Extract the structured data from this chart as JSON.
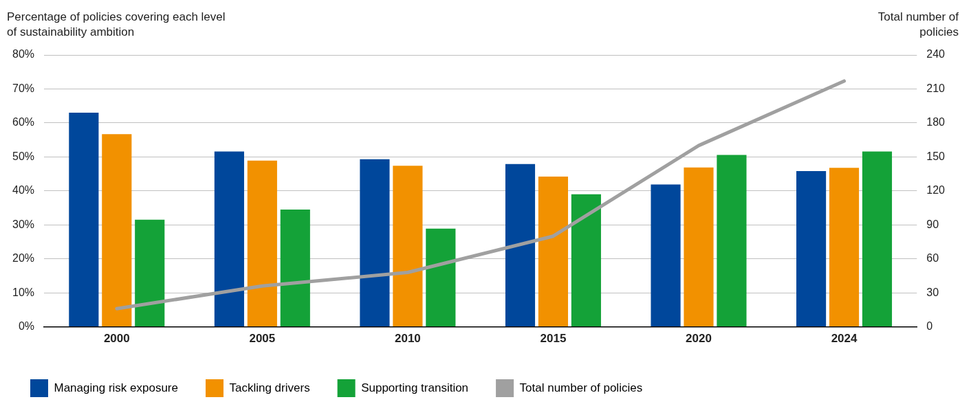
{
  "chart_data": {
    "type": "bar",
    "ylabel": "Percentage of policies covering each level of sustainability ambition",
    "y2label": "Total number of policies",
    "categories": [
      "2000",
      "2005",
      "2010",
      "2015",
      "2020",
      "2024"
    ],
    "series": [
      {
        "name": "Managing risk exposure",
        "color": "#00479b",
        "values": [
          63.0,
          51.6,
          49.3,
          47.9,
          41.9,
          45.8
        ]
      },
      {
        "name": "Tackling drivers",
        "color": "#f29100",
        "values": [
          56.7,
          48.9,
          47.4,
          44.2,
          46.9,
          46.8
        ]
      },
      {
        "name": "Supporting transition",
        "color": "#14a238",
        "values": [
          31.5,
          34.5,
          28.9,
          39.0,
          50.6,
          51.6
        ]
      },
      {
        "name": "Total number of policies",
        "color": "#a0a0a0",
        "type": "line",
        "axis": "y2",
        "values": [
          16,
          36,
          48,
          80,
          160,
          217
        ]
      }
    ],
    "ylim": [
      0,
      80
    ],
    "yticks": [
      {
        "value": 0,
        "label": "0%"
      },
      {
        "value": 10,
        "label": "10%"
      },
      {
        "value": 20,
        "label": "20%"
      },
      {
        "value": 30,
        "label": "30%"
      },
      {
        "value": 40,
        "label": "40%"
      },
      {
        "value": 50,
        "label": "50%"
      },
      {
        "value": 60,
        "label": "60%"
      },
      {
        "value": 70,
        "label": "70%"
      },
      {
        "value": 80,
        "label": "80%"
      }
    ],
    "y2lim": [
      0,
      240
    ],
    "y2ticks": [
      0,
      30,
      60,
      90,
      120,
      150,
      180,
      210,
      240
    ],
    "grid": "y",
    "legend": "bottom",
    "marker": "none",
    "line_style": "solid"
  }
}
